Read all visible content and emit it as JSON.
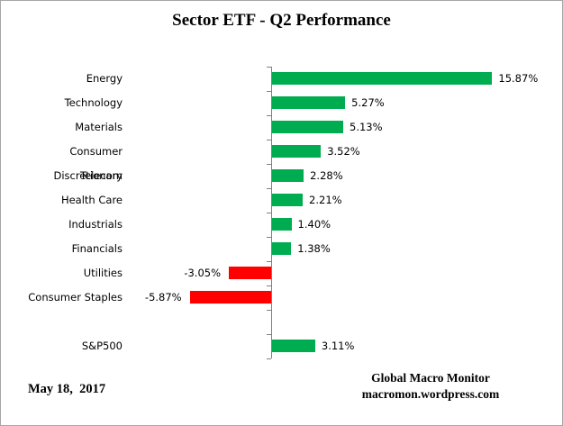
{
  "chart_data": {
    "type": "bar",
    "orientation": "horizontal",
    "title": "Sector ETF - Q2 Performance",
    "categories": [
      "Energy",
      "Technology",
      "Materials",
      "Consumer Discretionary",
      "Telecom",
      "Health Care",
      "Industrials",
      "Financials",
      "Utilities",
      "Consumer Staples",
      "",
      "S&P500"
    ],
    "values": [
      15.87,
      5.27,
      5.13,
      3.52,
      2.28,
      2.21,
      1.4,
      1.38,
      -3.05,
      -5.87,
      null,
      3.11
    ],
    "value_labels": [
      "15.87%",
      "5.27%",
      "5.13%",
      "3.52%",
      "2.28%",
      "2.21%",
      "1.40%",
      "1.38%",
      "-3.05%",
      "-5.87%",
      "",
      "3.11%"
    ],
    "xlim": [
      -6.5,
      20.5
    ],
    "grid": false,
    "legend": false,
    "positive_color": "#00AC50",
    "negative_color": "#FF0000",
    "axis_color": "#808080"
  },
  "footer": {
    "date": "May 18,  2017",
    "source_line1": "Global Macro Monitor",
    "source_line2": "macromon.wordpress.com"
  }
}
